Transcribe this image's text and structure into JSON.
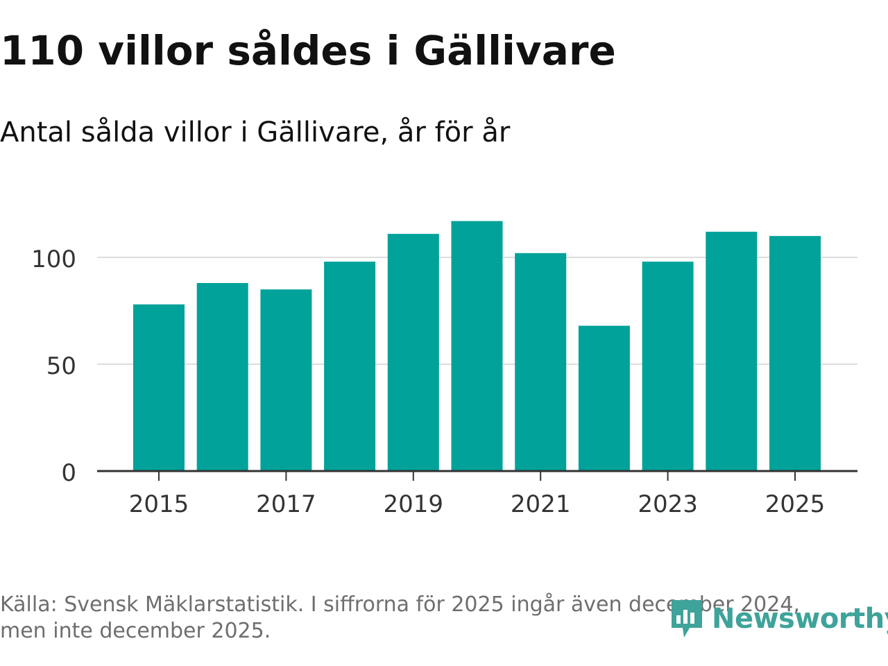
{
  "title": "110 villor såldes i Gällivare",
  "subtitle": "Antal sålda villor i Gällivare, år för år",
  "footnote": "Källa: Svensk Mäklarstatistik. I siffrorna för 2025 ingår även december 2024, men inte december 2025.",
  "logo": {
    "text": "Newsworthy",
    "icon": "newsworthy-logo-icon",
    "color": "#3ea39a"
  },
  "colors": {
    "bar": "#00a29a",
    "grid": "#dddddd",
    "axis": "#333333",
    "tick_label": "#333333"
  },
  "chart_data": {
    "type": "bar",
    "title": "110 villor såldes i Gällivare",
    "subtitle": "Antal sålda villor i Gällivare, år för år",
    "categories": [
      "2015",
      "2016",
      "2017",
      "2018",
      "2019",
      "2020",
      "2021",
      "2022",
      "2023",
      "2024",
      "2025"
    ],
    "values": [
      78,
      88,
      85,
      98,
      111,
      117,
      102,
      68,
      98,
      112,
      110
    ],
    "x_tick_labels": [
      "2015",
      "2017",
      "2019",
      "2021",
      "2023",
      "2025"
    ],
    "y_ticks": [
      0,
      50,
      100
    ],
    "ylim": [
      0,
      120
    ],
    "xlabel": "",
    "ylabel": "",
    "grid": true
  }
}
